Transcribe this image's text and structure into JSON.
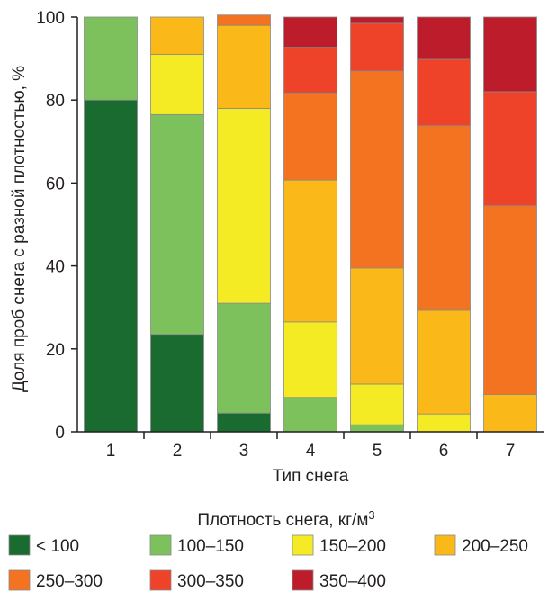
{
  "chart_data": {
    "type": "bar",
    "stacked": true,
    "xlabel": "Тип снега",
    "ylabel": "Доля проб снега с разной плотностью, %",
    "categories": [
      "1",
      "2",
      "3",
      "4",
      "5",
      "6",
      "7"
    ],
    "ylim": [
      0,
      100
    ],
    "yticks": [
      "0",
      "20",
      "40",
      "60",
      "80",
      "100"
    ],
    "grid": false,
    "legend": {
      "title_prefix": "Плотность снега, кг/м",
      "title_sup": "3",
      "placement": "bottom"
    },
    "series": [
      {
        "name": "< 100",
        "color": "#1a6b2f",
        "values": [
          80,
          23.5,
          4.5,
          0,
          0,
          0,
          0
        ]
      },
      {
        "name": "100–150",
        "color": "#7cc15b",
        "values": [
          20,
          53,
          26.5,
          8.3,
          1.7,
          0,
          0
        ]
      },
      {
        "name": "150–200",
        "color": "#f5eb25",
        "values": [
          0,
          14.5,
          47,
          18.2,
          9.8,
          4.3,
          0
        ]
      },
      {
        "name": "200–250",
        "color": "#fbb819",
        "values": [
          0,
          9,
          20,
          34.2,
          28,
          25,
          9
        ]
      },
      {
        "name": "250–300",
        "color": "#f37321",
        "values": [
          0,
          0,
          2.5,
          21,
          47.5,
          44.5,
          45.5
        ]
      },
      {
        "name": "300–350",
        "color": "#ee4229",
        "values": [
          0,
          0,
          0,
          11,
          11.5,
          16,
          27.5
        ]
      },
      {
        "name": "350–400",
        "color": "#bd1c2b",
        "values": [
          0,
          0,
          0,
          7.3,
          1.5,
          10.2,
          18
        ]
      }
    ]
  }
}
